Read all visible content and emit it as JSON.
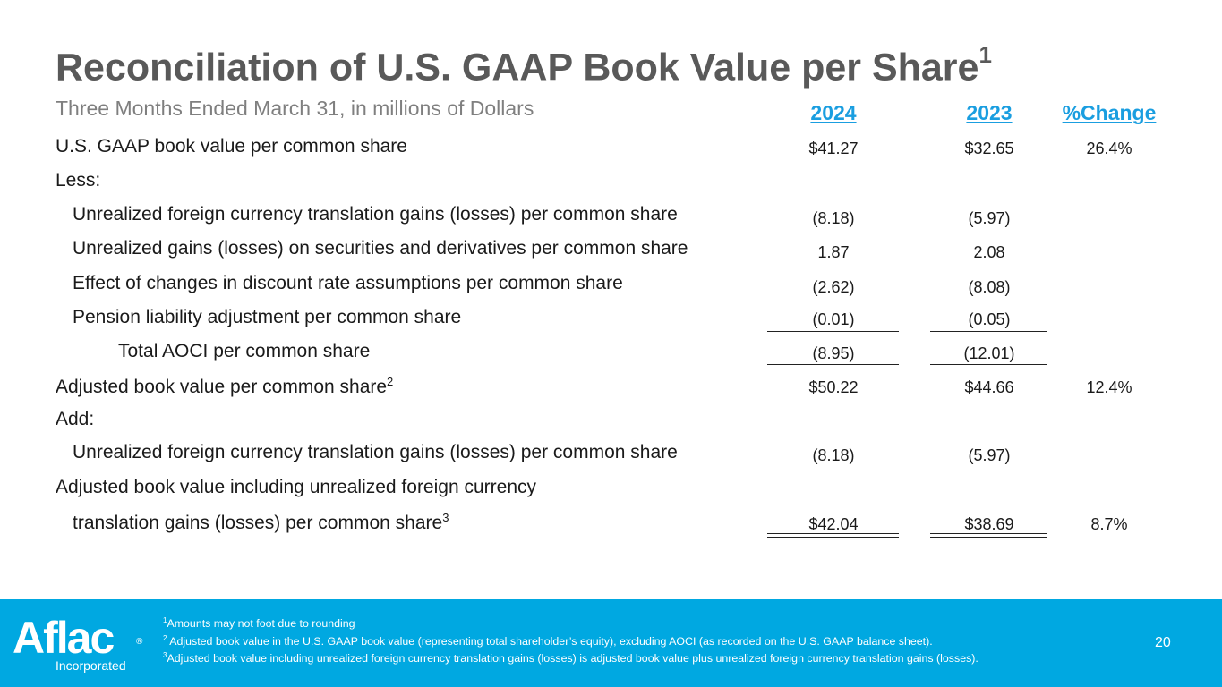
{
  "title": {
    "text": "Reconciliation of U.S. GAAP Book Value per Share",
    "sup": "1"
  },
  "subtitle": "Three Months Ended March 31, in millions of Dollars",
  "columns": {
    "y2024": "2024",
    "y2023": "2023",
    "pct": "%Change"
  },
  "rows": {
    "gaap": {
      "label": "U.S. GAAP book value per common share",
      "v2024": "$41.27",
      "v2023": "$32.65",
      "pct": "26.4%"
    },
    "less": {
      "label": "Less:"
    },
    "fx1": {
      "label": "Unrealized foreign currency translation gains (losses) per common share",
      "v2024": "(8.18)",
      "v2023": "(5.97)"
    },
    "sec": {
      "label": "Unrealized gains (losses) on securities and derivatives per common share",
      "v2024": "1.87",
      "v2023": "2.08"
    },
    "disc": {
      "label": "Effect of changes in discount rate assumptions per common share",
      "v2024": "(2.62)",
      "v2023": "(8.08)"
    },
    "pension": {
      "label": "Pension liability adjustment per common share",
      "v2024": "(0.01)",
      "v2023": "(0.05)"
    },
    "aoci": {
      "label": "Total AOCI per common share",
      "v2024": "(8.95)",
      "v2023": "(12.01)"
    },
    "adj": {
      "label": "Adjusted book value per common share",
      "sup": "2",
      "v2024": "$50.22",
      "v2023": "$44.66",
      "pct": "12.4%"
    },
    "add": {
      "label": "Add:"
    },
    "fx2": {
      "label": "Unrealized foreign currency translation gains (losses) per common share",
      "v2024": "(8.18)",
      "v2023": "(5.97)"
    },
    "adjfx1": {
      "label": "Adjusted book value including unrealized foreign currency"
    },
    "adjfx2": {
      "label": "translation gains (losses) per common share",
      "sup": "3",
      "v2024": "$42.04",
      "v2023": "$38.69",
      "pct": "8.7%"
    }
  },
  "footer": {
    "logo": {
      "word": "Aflac",
      "reg": "®",
      "sub": "Incorporated"
    },
    "notes": [
      {
        "sup": "1",
        "text": "Amounts may not foot due to rounding"
      },
      {
        "sup": "2",
        "text": " Adjusted book value in the U.S. GAAP book value (representing total shareholder’s equity), excluding AOCI (as recorded on the U.S. GAAP balance sheet)."
      },
      {
        "sup": "3",
        "text": "Adjusted book value including unrealized foreign currency translation gains (losses) is adjusted book value plus unrealized foreign currency translation gains (losses)."
      }
    ],
    "page_number": "20"
  },
  "colors": {
    "title": "#595959",
    "subtitle": "#7f7f7f",
    "accent": "#1a9ee0",
    "footer_bg": "#00a8e1"
  }
}
